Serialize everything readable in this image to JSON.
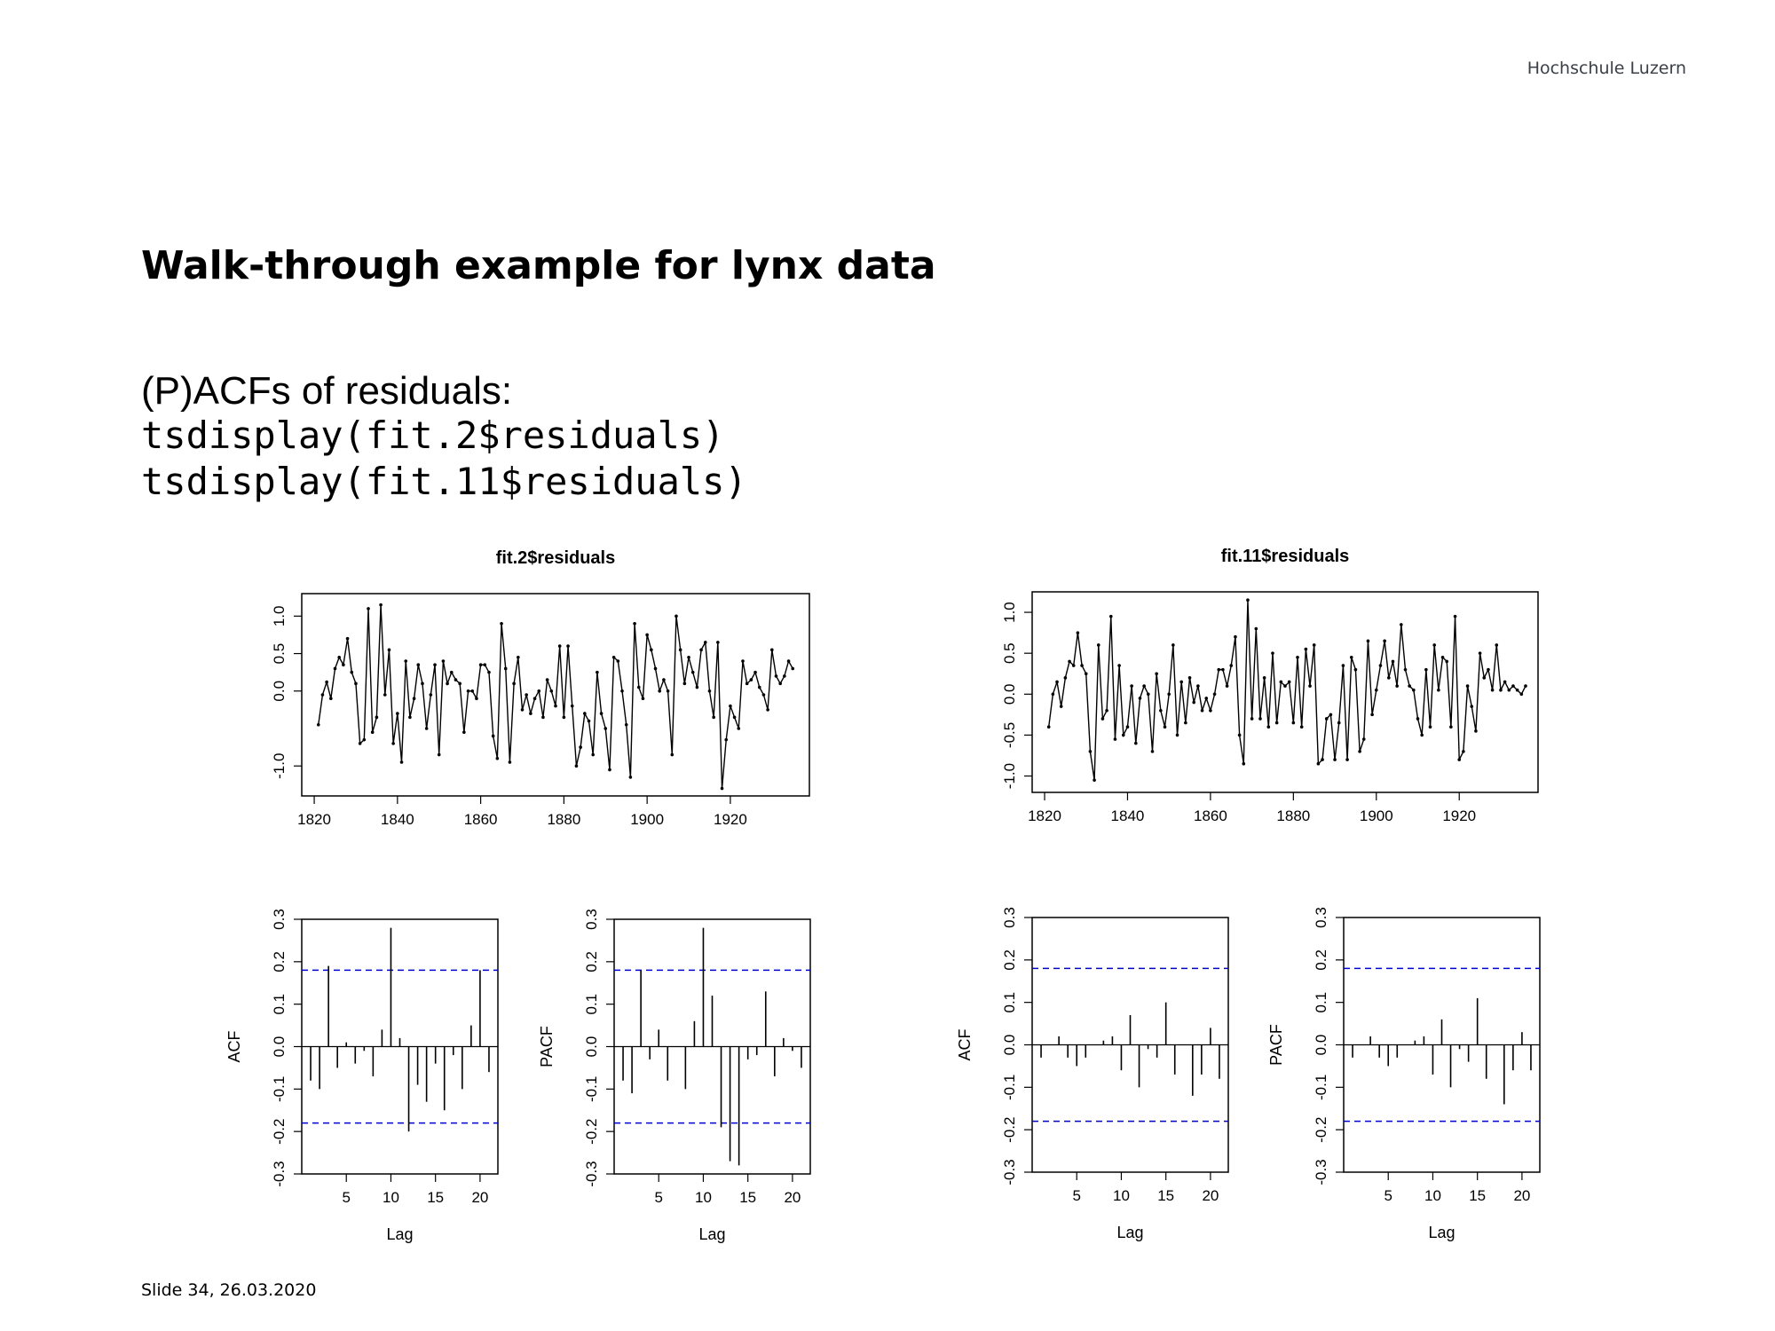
{
  "header": {
    "brand": "Hochschule Luzern"
  },
  "slide": {
    "title": "Walk-through example for lynx data",
    "subtitle": "(P)ACFs of residuals:",
    "code_lines": [
      "tsdisplay(fit.2$residuals)",
      "tsdisplay(fit.11$residuals)"
    ],
    "footer": "Slide 34, 26.03.2020"
  },
  "colors": {
    "confidence_band": "#0000cc",
    "line": "#000000"
  },
  "chart_data": [
    {
      "type": "line",
      "title": "fit.2$residuals",
      "xlim": [
        1817,
        1939
      ],
      "ylim": [
        -1.4,
        1.3
      ],
      "x_ticks": [
        1820,
        1840,
        1860,
        1880,
        1900,
        1920
      ],
      "y_ticks": [
        -1.0,
        0.0,
        0.5,
        1.0
      ],
      "y_tick_labels": [
        "-1.0",
        "0.0",
        "0.5",
        "1.0"
      ],
      "x_start": 1821,
      "values": [
        -0.45,
        -0.05,
        0.12,
        -0.1,
        0.3,
        0.45,
        0.35,
        0.7,
        0.25,
        0.1,
        -0.7,
        -0.65,
        1.1,
        -0.55,
        -0.35,
        1.15,
        -0.05,
        0.55,
        -0.7,
        -0.3,
        -0.95,
        0.4,
        -0.35,
        -0.1,
        0.35,
        0.1,
        -0.5,
        -0.05,
        0.35,
        -0.85,
        0.4,
        0.1,
        0.25,
        0.15,
        0.1,
        -0.55,
        0.0,
        0.0,
        -0.1,
        0.35,
        0.35,
        0.25,
        -0.6,
        -0.9,
        0.9,
        0.3,
        -0.95,
        0.1,
        0.45,
        -0.25,
        -0.05,
        -0.3,
        -0.1,
        0.0,
        -0.35,
        0.15,
        0.0,
        -0.2,
        0.6,
        -0.35,
        0.6,
        -0.2,
        -1.0,
        -0.75,
        -0.3,
        -0.4,
        -0.85,
        0.25,
        -0.3,
        -0.5,
        -1.05,
        0.45,
        0.4,
        0.0,
        -0.45,
        -1.15,
        0.9,
        0.05,
        -0.1,
        0.75,
        0.55,
        0.3,
        0.0,
        0.15,
        0.0,
        -0.85,
        1.0,
        0.55,
        0.1,
        0.45,
        0.25,
        0.05,
        0.55,
        0.65,
        0.0,
        -0.35,
        0.65,
        -1.3,
        -0.65,
        -0.2,
        -0.35,
        -0.5,
        0.4,
        0.1,
        0.15,
        0.25,
        0.05,
        -0.05,
        -0.25,
        0.55,
        0.2,
        0.1,
        0.2,
        0.4,
        0.3
      ]
    },
    {
      "type": "bar",
      "ylabel": "ACF",
      "xlabel": "Lag",
      "ylim": [
        -0.3,
        0.3
      ],
      "xlim": [
        0,
        22
      ],
      "x_ticks": [
        5,
        10,
        15,
        20
      ],
      "y_ticks": [
        -0.3,
        -0.2,
        -0.1,
        0.0,
        0.1,
        0.2,
        0.3
      ],
      "y_tick_labels": [
        "-0.3",
        "-0.2",
        "-0.1",
        "0.0",
        "0.1",
        "0.2",
        "0.3"
      ],
      "confidence_band": 0.18,
      "lags": [
        1,
        2,
        3,
        4,
        5,
        6,
        7,
        8,
        9,
        10,
        11,
        12,
        13,
        14,
        15,
        16,
        17,
        18,
        19,
        20,
        21
      ],
      "values": [
        -0.08,
        -0.1,
        0.19,
        -0.05,
        0.01,
        -0.04,
        -0.01,
        -0.07,
        0.04,
        0.28,
        0.02,
        -0.2,
        -0.09,
        -0.13,
        -0.04,
        -0.15,
        -0.02,
        -0.1,
        0.05,
        0.18,
        -0.06
      ]
    },
    {
      "type": "bar",
      "ylabel": "PACF",
      "xlabel": "Lag",
      "ylim": [
        -0.3,
        0.3
      ],
      "xlim": [
        0,
        22
      ],
      "x_ticks": [
        5,
        10,
        15,
        20
      ],
      "y_ticks": [
        -0.3,
        -0.2,
        -0.1,
        0.0,
        0.1,
        0.2,
        0.3
      ],
      "y_tick_labels": [
        "-0.3",
        "-0.2",
        "-0.1",
        "0.0",
        "0.1",
        "0.2",
        "0.3"
      ],
      "confidence_band": 0.18,
      "lags": [
        1,
        2,
        3,
        4,
        5,
        6,
        7,
        8,
        9,
        10,
        11,
        12,
        13,
        14,
        15,
        16,
        17,
        18,
        19,
        20,
        21
      ],
      "values": [
        -0.08,
        -0.11,
        0.18,
        -0.03,
        0.04,
        -0.08,
        0.0,
        -0.1,
        0.06,
        0.28,
        0.12,
        -0.19,
        -0.27,
        -0.28,
        -0.03,
        -0.02,
        0.13,
        -0.07,
        0.02,
        -0.01,
        -0.05
      ]
    },
    {
      "type": "line",
      "title": "fit.11$residuals",
      "xlim": [
        1817,
        1939
      ],
      "ylim": [
        -1.2,
        1.25
      ],
      "x_ticks": [
        1820,
        1840,
        1860,
        1880,
        1900,
        1920
      ],
      "y_ticks": [
        -1.0,
        -0.5,
        0.0,
        0.5,
        1.0
      ],
      "y_tick_labels": [
        "-1.0",
        "-0.5",
        "0.0",
        "0.5",
        "1.0"
      ],
      "x_start": 1821,
      "values": [
        -0.4,
        0.0,
        0.15,
        -0.15,
        0.2,
        0.4,
        0.35,
        0.75,
        0.35,
        0.25,
        -0.7,
        -1.05,
        0.6,
        -0.3,
        -0.2,
        0.95,
        -0.55,
        0.35,
        -0.5,
        -0.4,
        0.1,
        -0.6,
        -0.05,
        0.1,
        0.0,
        -0.7,
        0.25,
        -0.2,
        -0.4,
        0.0,
        0.6,
        -0.5,
        0.15,
        -0.35,
        0.2,
        -0.1,
        0.1,
        -0.2,
        -0.05,
        -0.2,
        0.0,
        0.3,
        0.3,
        0.1,
        0.35,
        0.7,
        -0.5,
        -0.85,
        1.15,
        -0.3,
        0.8,
        -0.3,
        0.2,
        -0.4,
        0.5,
        -0.35,
        0.15,
        0.1,
        0.15,
        -0.35,
        0.45,
        -0.4,
        0.55,
        0.1,
        0.6,
        -0.85,
        -0.8,
        -0.3,
        -0.25,
        -0.8,
        -0.35,
        0.35,
        -0.8,
        0.45,
        0.3,
        -0.7,
        -0.55,
        0.65,
        -0.25,
        0.05,
        0.35,
        0.65,
        0.2,
        0.4,
        0.1,
        0.85,
        0.3,
        0.1,
        0.05,
        -0.3,
        -0.5,
        0.3,
        -0.4,
        0.6,
        0.05,
        0.45,
        0.4,
        -0.4,
        0.95,
        -0.8,
        -0.7,
        0.1,
        -0.15,
        -0.45,
        0.5,
        0.2,
        0.3,
        0.05,
        0.6,
        0.05,
        0.15,
        0.05,
        0.1,
        0.05,
        0.0,
        0.1
      ]
    },
    {
      "type": "bar",
      "ylabel": "ACF",
      "xlabel": "Lag",
      "ylim": [
        -0.3,
        0.3
      ],
      "xlim": [
        0,
        22
      ],
      "x_ticks": [
        5,
        10,
        15,
        20
      ],
      "y_ticks": [
        -0.3,
        -0.2,
        -0.1,
        0.0,
        0.1,
        0.2,
        0.3
      ],
      "y_tick_labels": [
        "-0.3",
        "-0.2",
        "-0.1",
        "0.0",
        "0.1",
        "0.2",
        "0.3"
      ],
      "confidence_band": 0.18,
      "lags": [
        1,
        2,
        3,
        4,
        5,
        6,
        7,
        8,
        9,
        10,
        11,
        12,
        13,
        14,
        15,
        16,
        17,
        18,
        19,
        20,
        21
      ],
      "values": [
        -0.03,
        0.0,
        0.02,
        -0.03,
        -0.05,
        -0.03,
        0.0,
        0.01,
        0.02,
        -0.06,
        0.07,
        -0.1,
        -0.01,
        -0.03,
        0.1,
        -0.07,
        0.0,
        -0.12,
        -0.07,
        0.04,
        -0.08
      ]
    },
    {
      "type": "bar",
      "ylabel": "PACF",
      "xlabel": "Lag",
      "ylim": [
        -0.3,
        0.3
      ],
      "xlim": [
        0,
        22
      ],
      "x_ticks": [
        5,
        10,
        15,
        20
      ],
      "y_ticks": [
        -0.3,
        -0.2,
        -0.1,
        0.0,
        0.1,
        0.2,
        0.3
      ],
      "y_tick_labels": [
        "-0.3",
        "-0.2",
        "-0.1",
        "0.0",
        "0.1",
        "0.2",
        "0.3"
      ],
      "confidence_band": 0.18,
      "lags": [
        1,
        2,
        3,
        4,
        5,
        6,
        7,
        8,
        9,
        10,
        11,
        12,
        13,
        14,
        15,
        16,
        17,
        18,
        19,
        20,
        21
      ],
      "values": [
        -0.03,
        0.0,
        0.02,
        -0.03,
        -0.05,
        -0.03,
        0.0,
        0.01,
        0.02,
        -0.07,
        0.06,
        -0.1,
        -0.01,
        -0.04,
        0.11,
        -0.08,
        0.0,
        -0.14,
        -0.06,
        0.03,
        -0.06
      ]
    }
  ]
}
